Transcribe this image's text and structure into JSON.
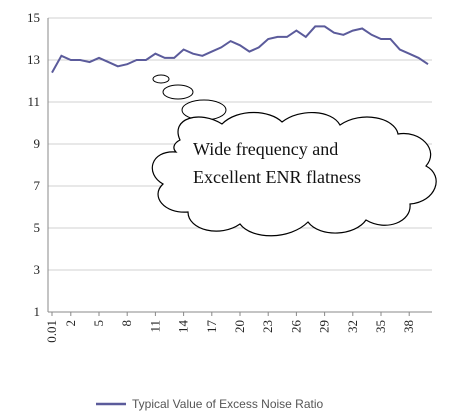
{
  "chart_data": {
    "type": "line",
    "x": [
      "0.01",
      "1",
      "2",
      "3",
      "4",
      "5",
      "6",
      "7",
      "8",
      "9",
      "10",
      "11",
      "12",
      "13",
      "14",
      "15",
      "16",
      "17",
      "18",
      "19",
      "20",
      "21",
      "22",
      "23",
      "24",
      "25",
      "26",
      "27",
      "28",
      "29",
      "30",
      "31",
      "32",
      "33",
      "34",
      "35",
      "36",
      "37",
      "38",
      "39",
      "40"
    ],
    "x_tick_labels": [
      "0.01",
      "2",
      "5",
      "8",
      "11",
      "14",
      "17",
      "20",
      "23",
      "26",
      "29",
      "32",
      "35",
      "38"
    ],
    "y_ticks": [
      1,
      3,
      5,
      7,
      9,
      11,
      13,
      15
    ],
    "ylim": [
      1,
      15
    ],
    "series": [
      {
        "name": "Typical Value of Excess Noise Ratio",
        "color": "#5b5b9b",
        "values": [
          12.4,
          13.2,
          13.0,
          13.0,
          12.9,
          13.1,
          12.9,
          12.7,
          12.8,
          13.0,
          13.0,
          13.3,
          13.1,
          13.1,
          13.5,
          13.3,
          13.2,
          13.4,
          13.6,
          13.9,
          13.7,
          13.4,
          13.6,
          14.0,
          14.1,
          14.1,
          14.4,
          14.1,
          14.6,
          14.6,
          14.3,
          14.2,
          14.4,
          14.5,
          14.2,
          14.0,
          14.0,
          13.5,
          13.3,
          13.1,
          12.8
        ]
      }
    ],
    "grid": true,
    "legend_position": "bottom"
  },
  "callout": {
    "line1": "Wide frequency and",
    "line2": "Excellent ENR flatness"
  }
}
